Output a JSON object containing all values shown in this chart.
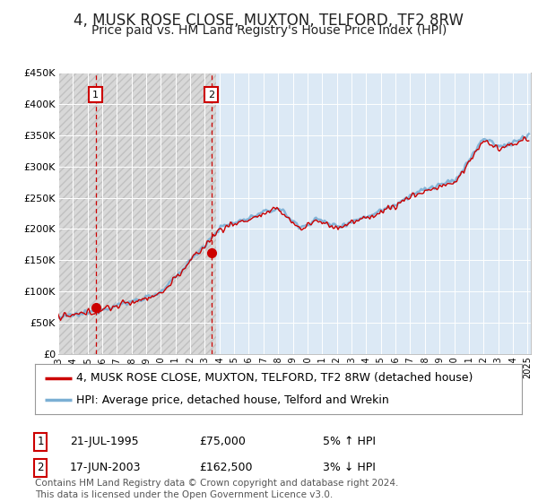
{
  "title": "4, MUSK ROSE CLOSE, MUXTON, TELFORD, TF2 8RW",
  "subtitle": "Price paid vs. HM Land Registry's House Price Index (HPI)",
  "ylim": [
    0,
    450000
  ],
  "yticks": [
    0,
    50000,
    100000,
    150000,
    200000,
    250000,
    300000,
    350000,
    400000,
    450000
  ],
  "ytick_labels": [
    "£0",
    "£50K",
    "£100K",
    "£150K",
    "£200K",
    "£250K",
    "£300K",
    "£350K",
    "£400K",
    "£450K"
  ],
  "sale_years_float": [
    1995.55,
    2003.46
  ],
  "sale_prices": [
    75000,
    162500
  ],
  "sale_labels": [
    "1",
    "2"
  ],
  "sale_date_strs": [
    "21-JUL-1995",
    "17-JUN-2003"
  ],
  "sale_price_strs": [
    "£75,000",
    "£162,500"
  ],
  "sale_hpi_strs": [
    "5% ↑ HPI",
    "3% ↓ HPI"
  ],
  "legend_label_red": "4, MUSK ROSE CLOSE, MUXTON, TELFORD, TF2 8RW (detached house)",
  "legend_label_blue": "HPI: Average price, detached house, Telford and Wrekin",
  "footer": "Contains HM Land Registry data © Crown copyright and database right 2024.\nThis data is licensed under the Open Government Licence v3.0.",
  "background_color": "#ffffff",
  "plot_bg_color": "#dce9f5",
  "hatch_bg_color": "#e0e0e0",
  "hatch_cutoff_year": 2003.8,
  "red_line_color": "#cc0000",
  "blue_line_color": "#7bafd4",
  "dashed_line_color": "#cc0000",
  "marker_color": "#cc0000",
  "title_fontsize": 12,
  "subtitle_fontsize": 10,
  "tick_fontsize": 8,
  "legend_fontsize": 9,
  "footer_fontsize": 7.5
}
